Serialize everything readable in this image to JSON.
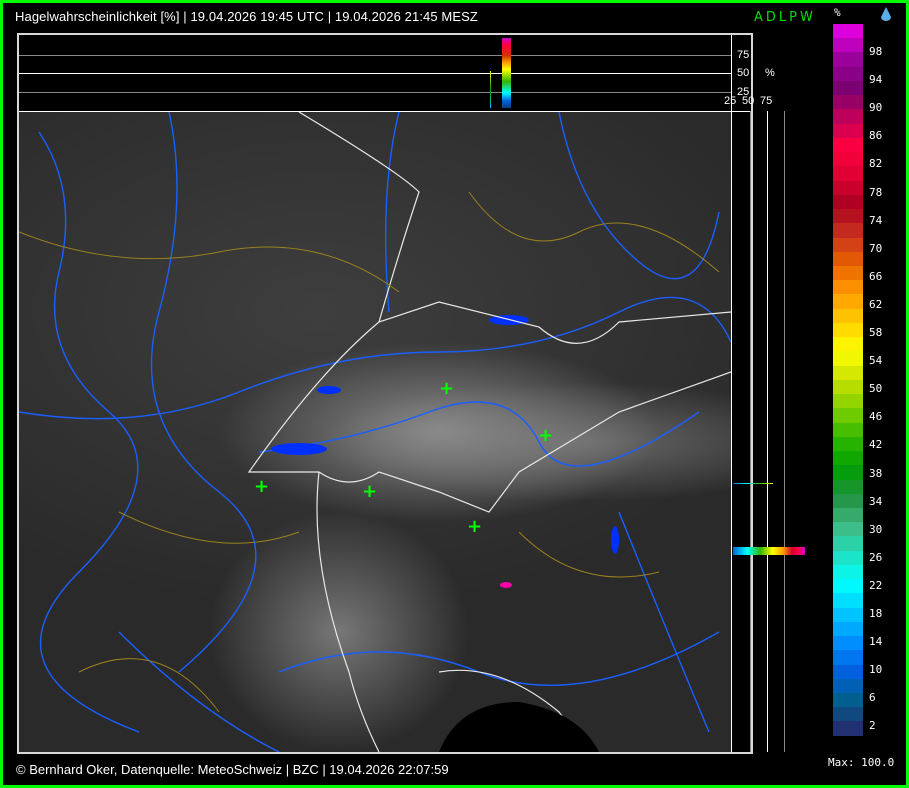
{
  "header": {
    "title": "Hagelwahrscheinlichkeit [%] | 19.04.2026 19:45 UTC | 19.04.2026 21:45 MESZ",
    "product_code": "ADLPW",
    "code_color": "#00e000"
  },
  "top_profile": {
    "ticks": [
      "75",
      "50",
      "25"
    ],
    "unit": "%"
  },
  "right_profile": {
    "ticks": [
      "25",
      "50",
      "75"
    ]
  },
  "map": {
    "markers": [
      {
        "type": "lightning-cross"
      },
      {
        "type": "lightning-cross"
      },
      {
        "type": "lightning-cross"
      },
      {
        "type": "lightning-cross"
      },
      {
        "type": "lightning-cross"
      }
    ],
    "hail_cell_max": 100.0
  },
  "legend": {
    "unit": "%",
    "icon": "water-drop-icon",
    "labels": [
      "98",
      "94",
      "90",
      "86",
      "82",
      "78",
      "74",
      "70",
      "66",
      "62",
      "58",
      "54",
      "50",
      "46",
      "42",
      "38",
      "34",
      "30",
      "26",
      "22",
      "18",
      "14",
      "10",
      "6",
      "2"
    ],
    "color_stops_top_to_bottom": [
      "#dd00dd",
      "#990099",
      "#7a0070",
      "#c0005a",
      "#ff0040",
      "#dd0030",
      "#aa0020",
      "#c83020",
      "#e86000",
      "#ff9900",
      "#ffcc00",
      "#ffff00",
      "#c8e000",
      "#80d000",
      "#30b800",
      "#00a000",
      "#209040",
      "#40b880",
      "#20e0c0",
      "#00ffff",
      "#00c8ff",
      "#0090ff",
      "#0060e0",
      "#006090",
      "#203070"
    ],
    "max_label": "Max: 100.0"
  },
  "footer": {
    "text": "© Bernhard Oker, Datenquelle: MeteoSchweiz | BZC | 19.04.2026 22:07:59"
  }
}
